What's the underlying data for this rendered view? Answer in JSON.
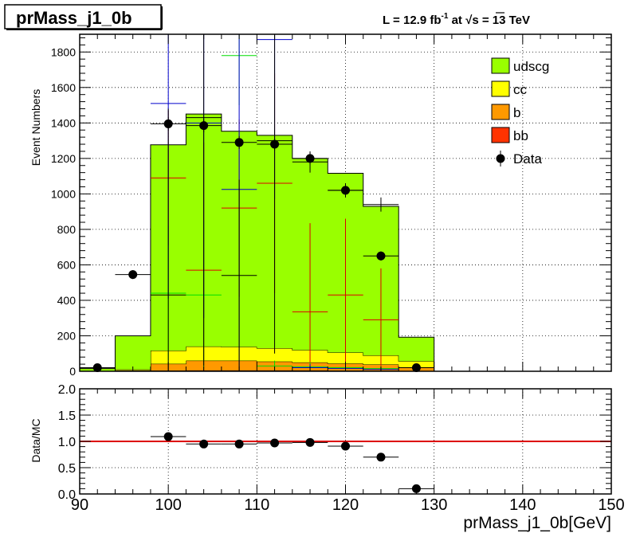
{
  "title": "prMass_j1_0b",
  "lumi_label": {
    "prefix": "L = 12.9 fb",
    "exponent": "-1",
    "middle": " at  ",
    "sqrt": "√",
    "s_label": "s = 13 TeV"
  },
  "legend": [
    {
      "label": "udscg",
      "color": "#99ff00",
      "kind": "box"
    },
    {
      "label": "cc",
      "color": "#ffff00",
      "kind": "box"
    },
    {
      "label": "b",
      "color": "#ff9900",
      "kind": "box"
    },
    {
      "label": "bb",
      "color": "#ff3300",
      "kind": "box"
    },
    {
      "label": "Data",
      "color": "#000000",
      "kind": "marker"
    }
  ],
  "chart_data": [
    {
      "type": "bar",
      "subtype": "stacked-histogram",
      "ylabel": "Event Numbers",
      "xlim": [
        90,
        150
      ],
      "ylim": [
        0,
        1900
      ],
      "grid": true,
      "legend_position": "top-right",
      "bin_edges": [
        90,
        94,
        98,
        102,
        106,
        110,
        114,
        118,
        122,
        126,
        130
      ],
      "series": [
        {
          "name": "bb",
          "color": "#ff3300",
          "values": [
            0,
            2,
            4,
            5,
            5,
            5,
            5,
            4,
            3,
            2
          ]
        },
        {
          "name": "b",
          "color": "#ff9900",
          "values": [
            0,
            3,
            38,
            55,
            55,
            50,
            45,
            40,
            35,
            20
          ]
        },
        {
          "name": "cc",
          "color": "#ffff00",
          "values": [
            0,
            5,
            75,
            80,
            78,
            75,
            70,
            62,
            52,
            35
          ]
        },
        {
          "name": "udscg",
          "color": "#99ff00",
          "values": [
            15,
            190,
            1160,
            1310,
            1215,
            1200,
            1080,
            1010,
            840,
            135
          ]
        }
      ],
      "data": {
        "name": "Data",
        "x": [
          92,
          96,
          100,
          104,
          108,
          112,
          116,
          120,
          124,
          128
        ],
        "y": [
          20,
          545,
          1395,
          1385,
          1290,
          1280,
          1200,
          1020,
          650,
          20
        ],
        "yerr": [
          15,
          25,
          38,
          38,
          36,
          36,
          35,
          32,
          26,
          5
        ],
        "xerr": 2
      },
      "mc_component_points": [
        {
          "series": "udscg",
          "x": [
            100,
            104,
            108,
            112,
            116,
            120,
            124
          ],
          "y": [
            1090,
            570,
            920,
            1060,
            335,
            430,
            290
          ],
          "yerr": [
            380,
            720,
            500,
            620,
            500,
            430,
            290
          ]
        },
        {
          "series": "cc",
          "x": [
            100,
            104,
            108,
            112,
            116,
            120,
            124
          ],
          "y": [
            440,
            430,
            1780,
            30,
            25,
            20,
            15
          ],
          "yerr": [
            380,
            420,
            280,
            30,
            25,
            20,
            15
          ]
        },
        {
          "series": "b",
          "x": [
            100,
            104,
            108,
            112,
            116,
            120,
            124
          ],
          "y": [
            1510,
            1400,
            1025,
            1870,
            20,
            15,
            10
          ],
          "yerr": [
            1100,
            1100,
            1025,
            900,
            20,
            15,
            10
          ]
        },
        {
          "series": "bb",
          "x": [
            100,
            104,
            108,
            112,
            116,
            120,
            124
          ],
          "y": [
            430,
            1430,
            540,
            1300,
            1180,
            1020,
            940
          ],
          "yerr": [
            1050,
            1400,
            540,
            1200,
            60,
            40,
            40
          ]
        }
      ]
    },
    {
      "type": "scatter",
      "ylabel": "Data/MC",
      "xlabel": "prMass_j1_0b[GeV]",
      "xlim": [
        90,
        150
      ],
      "ylim": [
        0,
        2
      ],
      "grid": true,
      "reference_line": 1.0,
      "x": [
        100,
        104,
        108,
        112,
        116,
        120,
        124,
        128
      ],
      "y": [
        1.09,
        0.95,
        0.95,
        0.97,
        0.98,
        0.91,
        0.7,
        0.1
      ],
      "xerr": 2,
      "xtick_labels": [
        "90",
        "100",
        "110",
        "120",
        "130",
        "140",
        "150"
      ],
      "ytick_labels": [
        "0.0",
        "0.5",
        "1.0",
        "1.5",
        "2.0"
      ]
    }
  ],
  "colors": {
    "reference_line": "#dd0000",
    "mc_point_colors": {
      "udscg": "#dd0000",
      "cc": "#00dd00",
      "b": "#0000cc",
      "bb": "#000000"
    }
  }
}
